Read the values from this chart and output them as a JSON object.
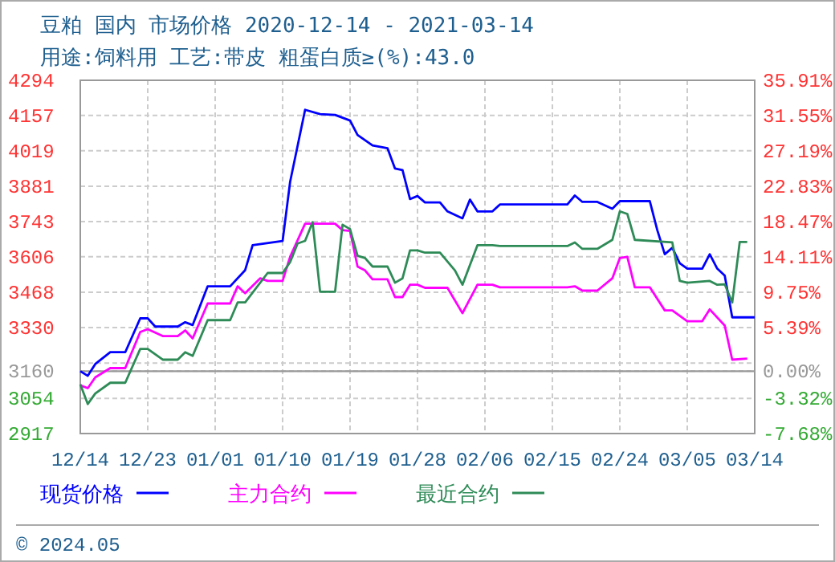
{
  "chart_data": {
    "type": "line",
    "title": "豆粕 国内 市场价格 2020-12-14 - 2021-03-14",
    "subtitle": "用途:饲料用 工艺:带皮 粗蛋白质≥(%):43.0",
    "xlim": [
      "2020-12-14",
      "2021-03-14"
    ],
    "xticks": [
      {
        "value": "2020-12-14",
        "label": "12/14"
      },
      {
        "value": "2020-12-23",
        "label": "12/23"
      },
      {
        "value": "2021-01-01",
        "label": "01/01"
      },
      {
        "value": "2021-01-10",
        "label": "01/10"
      },
      {
        "value": "2021-01-19",
        "label": "01/19"
      },
      {
        "value": "2021-01-28",
        "label": "01/28"
      },
      {
        "value": "2021-02-06",
        "label": "02/06"
      },
      {
        "value": "2021-02-15",
        "label": "02/15"
      },
      {
        "value": "2021-02-24",
        "label": "02/24"
      },
      {
        "value": "2021-03-05",
        "label": "03/05"
      },
      {
        "value": "2021-03-14",
        "label": "03/14"
      }
    ],
    "ylim": [
      2917,
      4294
    ],
    "yticks": [
      2917,
      3054,
      3160,
      {
        "value": 3192,
        "label": null
      },
      3330,
      3468,
      3606,
      3743,
      3881,
      4019,
      4157,
      4294
    ],
    "y2lim": [
      -7.68,
      35.91
    ],
    "y2ticks": [
      {
        "value": -7.68,
        "label": "-7.68%"
      },
      {
        "value": -3.32,
        "label": "-3.32%"
      },
      {
        "value": 0,
        "label": "0.00%"
      },
      {
        "value": 5.39,
        "label": "5.39%"
      },
      {
        "value": 9.75,
        "label": "9.75%"
      },
      {
        "value": 14.11,
        "label": "14.11%"
      },
      {
        "value": 18.47,
        "label": "18.47%"
      },
      {
        "value": 22.83,
        "label": "22.83%"
      },
      {
        "value": 27.19,
        "label": "27.19%"
      },
      {
        "value": 31.55,
        "label": "31.55%"
      },
      {
        "value": 35.91,
        "label": "35.91%"
      }
    ],
    "ref_lines": [
      {
        "axis": "y",
        "value": 3160,
        "color": "#999999"
      }
    ],
    "grid": true,
    "legend": "bottom",
    "marker": "none",
    "line_style": "solid",
    "annotations": [
      "© 2024.05"
    ],
    "series": [
      {
        "name": "现货价格",
        "color": "#0000ff",
        "x": [
          "2020-12-14",
          "2020-12-15",
          "2020-12-16",
          "2020-12-18",
          "2020-12-20",
          "2020-12-22",
          "2020-12-23",
          "2020-12-24",
          "2020-12-27",
          "2020-12-28",
          "2020-12-29",
          "2020-12-31",
          "2021-01-03",
          "2021-01-05",
          "2021-01-06",
          "2021-01-10",
          "2021-01-11",
          "2021-01-13",
          "2021-01-15",
          "2021-01-17",
          "2021-01-19",
          "2021-01-20",
          "2021-01-22",
          "2021-01-24",
          "2021-01-25",
          "2021-01-26",
          "2021-01-27",
          "2021-01-28",
          "2021-01-29",
          "2021-01-31",
          "2021-02-01",
          "2021-02-03",
          "2021-02-04",
          "2021-02-05",
          "2021-02-07",
          "2021-02-08",
          "2021-02-17",
          "2021-02-18",
          "2021-02-19",
          "2021-02-21",
          "2021-02-23",
          "2021-02-24",
          "2021-02-28",
          "2021-03-01",
          "2021-03-02",
          "2021-03-03",
          "2021-03-04",
          "2021-03-05",
          "2021-03-07",
          "2021-03-08",
          "2021-03-09",
          "2021-03-10",
          "2021-03-11",
          "2021-03-14"
        ],
        "values": [
          3160,
          3142,
          3188,
          3234,
          3234,
          3366,
          3366,
          3334,
          3334,
          3351,
          3340,
          3491,
          3491,
          3554,
          3651,
          3668,
          3898,
          4179,
          4162,
          4159,
          4137,
          4081,
          4040,
          4029,
          3950,
          3944,
          3831,
          3843,
          3818,
          3818,
          3783,
          3756,
          3829,
          3783,
          3783,
          3810,
          3810,
          3845,
          3820,
          3820,
          3793,
          3823,
          3823,
          3710,
          3616,
          3641,
          3581,
          3560,
          3560,
          3616,
          3560,
          3533,
          3370,
          3370
        ]
      },
      {
        "name": "主力合约",
        "color": "#ff00ff",
        "x": [
          "2020-12-14",
          "2020-12-15",
          "2020-12-16",
          "2020-12-18",
          "2020-12-20",
          "2020-12-22",
          "2020-12-23",
          "2020-12-25",
          "2020-12-27",
          "2020-12-28",
          "2020-12-29",
          "2020-12-31",
          "2021-01-03",
          "2021-01-04",
          "2021-01-05",
          "2021-01-07",
          "2021-01-08",
          "2021-01-10",
          "2021-01-11",
          "2021-01-13",
          "2021-01-17",
          "2021-01-18",
          "2021-01-19",
          "2021-01-20",
          "2021-01-21",
          "2021-01-22",
          "2021-01-24",
          "2021-01-25",
          "2021-01-26",
          "2021-01-27",
          "2021-01-28",
          "2021-01-29",
          "2021-02-01",
          "2021-02-03",
          "2021-02-05",
          "2021-02-07",
          "2021-02-08",
          "2021-02-17",
          "2021-02-18",
          "2021-02-19",
          "2021-02-21",
          "2021-02-23",
          "2021-02-24",
          "2021-02-25",
          "2021-02-26",
          "2021-02-28",
          "2021-03-02",
          "2021-03-03",
          "2021-03-05",
          "2021-03-07",
          "2021-03-08",
          "2021-03-10",
          "2021-03-11",
          "2021-03-13"
        ],
        "values": [
          3105,
          3094,
          3136,
          3172,
          3172,
          3313,
          3324,
          3297,
          3297,
          3319,
          3288,
          3424,
          3424,
          3491,
          3464,
          3522,
          3512,
          3512,
          3606,
          3735,
          3735,
          3710,
          3707,
          3568,
          3553,
          3518,
          3518,
          3449,
          3449,
          3497,
          3497,
          3485,
          3485,
          3386,
          3497,
          3497,
          3487,
          3487,
          3491,
          3474,
          3474,
          3522,
          3601,
          3606,
          3487,
          3487,
          3397,
          3397,
          3355,
          3355,
          3401,
          3338,
          3205,
          3209
        ]
      },
      {
        "name": "最近合约",
        "color": "#2e8b57",
        "x": [
          "2020-12-14",
          "2020-12-15",
          "2020-12-16",
          "2020-12-18",
          "2020-12-20",
          "2020-12-22",
          "2020-12-23",
          "2020-12-25",
          "2020-12-27",
          "2020-12-28",
          "2020-12-29",
          "2020-12-31",
          "2021-01-03",
          "2021-01-04",
          "2021-01-05",
          "2021-01-08",
          "2021-01-10",
          "2021-01-11",
          "2021-01-12",
          "2021-01-13",
          "2021-01-14",
          "2021-01-15",
          "2021-01-17",
          "2021-01-18",
          "2021-01-19",
          "2021-01-20",
          "2021-01-21",
          "2021-01-22",
          "2021-01-24",
          "2021-01-25",
          "2021-01-26",
          "2021-01-27",
          "2021-01-28",
          "2021-01-29",
          "2021-01-31",
          "2021-02-02",
          "2021-02-03",
          "2021-02-05",
          "2021-02-07",
          "2021-02-08",
          "2021-02-17",
          "2021-02-18",
          "2021-02-19",
          "2021-02-21",
          "2021-02-23",
          "2021-02-24",
          "2021-02-25",
          "2021-02-26",
          "2021-03-03",
          "2021-03-04",
          "2021-03-05",
          "2021-03-08",
          "2021-03-09",
          "2021-03-10",
          "2021-03-11",
          "2021-03-12",
          "2021-03-13"
        ],
        "values": [
          3109,
          3032,
          3073,
          3115,
          3115,
          3247,
          3247,
          3205,
          3205,
          3234,
          3220,
          3359,
          3359,
          3428,
          3428,
          3543,
          3543,
          3585,
          3658,
          3668,
          3741,
          3470,
          3470,
          3731,
          3714,
          3610,
          3601,
          3568,
          3568,
          3505,
          3522,
          3631,
          3631,
          3622,
          3622,
          3553,
          3497,
          3651,
          3651,
          3648,
          3648,
          3662,
          3637,
          3637,
          3672,
          3783,
          3773,
          3672,
          3662,
          3512,
          3505,
          3512,
          3497,
          3499,
          3428,
          3664,
          3664
        ]
      }
    ]
  }
}
